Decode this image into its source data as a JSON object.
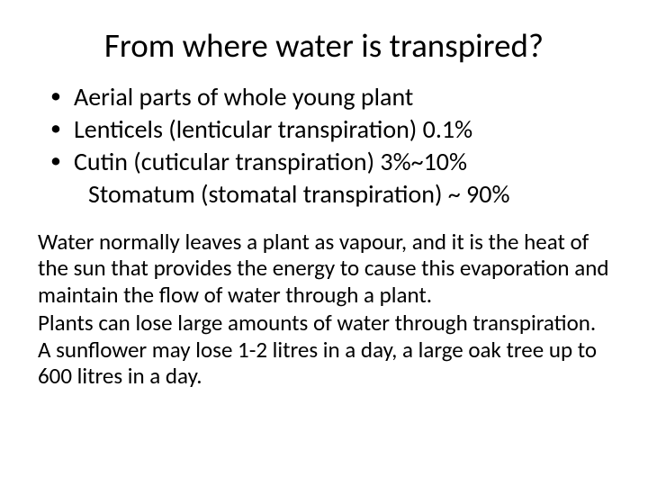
{
  "title": "From where water is transpired?",
  "bullets": {
    "b1": "Aerial parts of whole young plant",
    "b2": "Lenticels (lenticular transpiration) 0.1%",
    "b3_line1": "Cutin (cuticular transpiration) 3%~10%",
    "b3_line2": "Stomatum (stomatal transpiration) ~ 90%"
  },
  "paragraphs": {
    "p1": "Water normally leaves a plant as vapour, and it is the heat of the sun that provides the energy to cause this evaporation and maintain the flow of water through a plant.",
    "p2": "Plants can lose large amounts of water through transpiration. A sunflower may lose 1-2 litres in a day, a large oak tree up to 600 litres in a day."
  },
  "style": {
    "background_color": "#ffffff",
    "text_color": "#000000",
    "title_fontsize": 37,
    "bullet_fontsize": 28,
    "paragraph_fontsize": 25,
    "font_family": "Calibri",
    "bullet_marker": "•"
  }
}
